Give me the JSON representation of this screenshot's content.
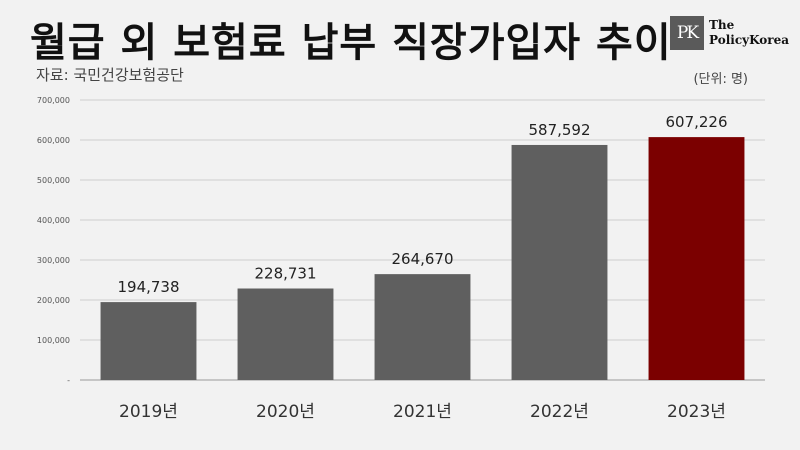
{
  "header": {
    "title": "월급 외 보험료 납부 직장가입자 추이",
    "source": "자료: 국민건강보험공단",
    "unit": "(단위: 명)"
  },
  "logo": {
    "mark": "PK",
    "line1": "The",
    "line2": "PolicyKorea"
  },
  "colors": {
    "bar": "#5f5f5f",
    "highlight": "#7b0000",
    "grid": "#cfcfcf",
    "axis": "#9a9a9a"
  },
  "chart_data": {
    "type": "bar",
    "categories": [
      "2019년",
      "2020년",
      "2021년",
      "2022년",
      "2023년"
    ],
    "values": [
      194738,
      228731,
      264670,
      587592,
      607226
    ],
    "value_labels": [
      "194,738",
      "228,731",
      "264,670",
      "587,592",
      "607,226"
    ],
    "highlight_index": 4,
    "ylim": [
      0,
      700000
    ],
    "yticks": [
      0,
      100000,
      200000,
      300000,
      400000,
      500000,
      600000,
      700000
    ],
    "ytick_labels": [
      "-",
      "100,000",
      "200,000",
      "300,000",
      "400,000",
      "500,000",
      "600,000",
      "700,000"
    ],
    "grid": true,
    "title": "월급 외 보험료 납부 직장가입자 추이",
    "xlabel": "",
    "ylabel": ""
  }
}
